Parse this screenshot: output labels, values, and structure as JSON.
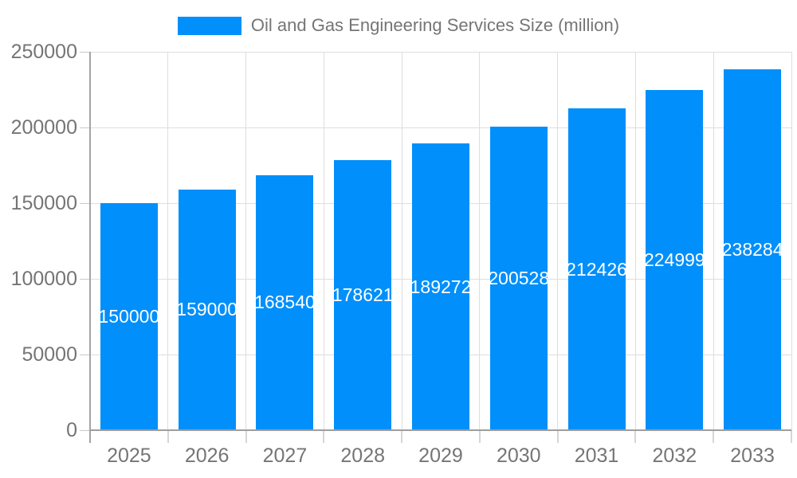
{
  "legend": {
    "label": "Oil and Gas Engineering Services Size (million)"
  },
  "chart_data": {
    "type": "bar",
    "title": "Oil and Gas Engineering Services Size (million)",
    "series_name": "Oil and Gas Engineering Services Size (million)",
    "categories": [
      "2025",
      "2026",
      "2027",
      "2028",
      "2029",
      "2030",
      "2031",
      "2032",
      "2033"
    ],
    "values": [
      150000,
      159000,
      168540,
      178621,
      189272,
      200528,
      212426,
      224999,
      238284
    ],
    "value_labels": [
      "150000",
      "159000",
      "168540",
      "178621",
      "189272",
      "200528",
      "212426",
      "224999",
      "238284"
    ],
    "xlabel": "",
    "ylabel": "",
    "ylim": [
      0,
      250000
    ],
    "yticks": [
      0,
      50000,
      100000,
      150000,
      200000,
      250000
    ],
    "ytick_labels": [
      "0",
      "50000",
      "100000",
      "150000",
      "200000",
      "250000"
    ],
    "grid": true,
    "legend_position": "top-center",
    "bar_color": "#008FFB",
    "value_label_color": "#ffffff",
    "axis_label_color": "#757575"
  }
}
